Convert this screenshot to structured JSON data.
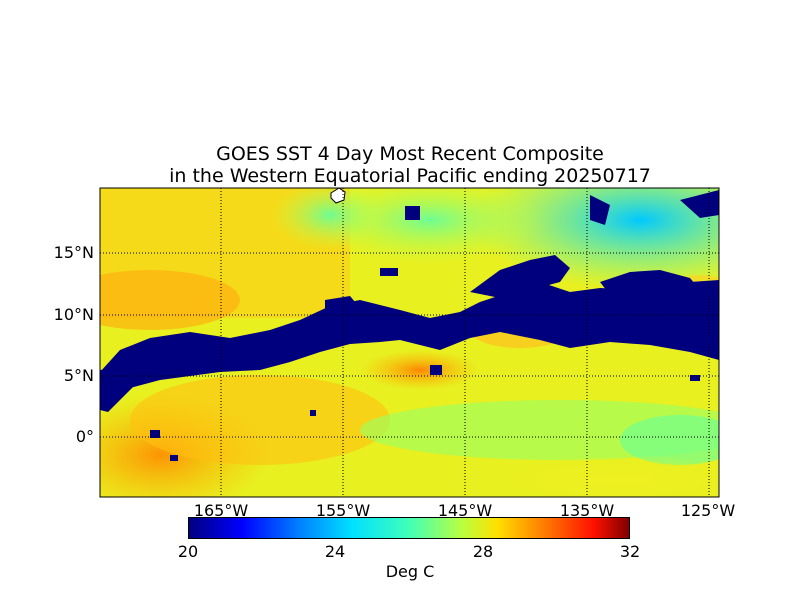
{
  "title_line1": "GOES SST 4 Day Most Recent Composite",
  "title_line2": "in the Western Equatorial Pacific ending 20250717",
  "lat_labels": [
    "15°N",
    "10°N",
    "5°N",
    "0°"
  ],
  "lon_labels": [
    "165°W",
    "155°W",
    "145°W",
    "135°W",
    "125°W"
  ],
  "colorbar": {
    "ticks": [
      "20",
      "24",
      "28",
      "32"
    ],
    "label": "Deg C",
    "range": [
      20,
      32
    ]
  },
  "map_extent": {
    "lon_min": -175,
    "lon_max": -124.2,
    "lat_min": -5,
    "lat_max": 20.2
  },
  "gridlines": {
    "lon": [
      -165,
      -155,
      -145,
      -135,
      -125
    ],
    "lat": [
      0,
      5,
      10,
      15
    ],
    "style": "dotted"
  },
  "colors": {
    "cloud_mask": "#00007f",
    "land": "#ffffff"
  }
}
